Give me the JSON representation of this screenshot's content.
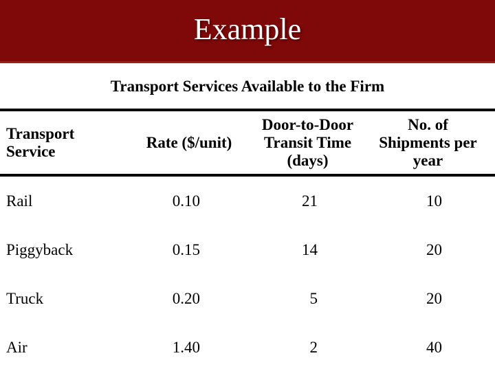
{
  "slide": {
    "title": "Example",
    "subtitle": "Transport Services Available to the Firm"
  },
  "table": {
    "headers": {
      "service": "Transport\nService",
      "rate": "Rate ($/unit)",
      "transit": "Door-to-Door\nTransit Time\n(days)",
      "shipments": "No. of\nShipments per\nyear"
    },
    "rows": [
      {
        "service": "Rail",
        "rate": "0.10",
        "transit": "21",
        "shipments": "10"
      },
      {
        "service": "Piggyback",
        "rate": "0.15",
        "transit": "14",
        "shipments": "20"
      },
      {
        "service": "Truck",
        "rate": "0.20",
        "transit": "5",
        "shipments": "20"
      },
      {
        "service": "Air",
        "rate": "1.40",
        "transit": "2",
        "shipments": "40"
      }
    ]
  },
  "colors": {
    "header_bar": "#7f0808",
    "header_bar_edge": "#9a1f14",
    "title_text": "#ffffff",
    "body_text": "#000000"
  }
}
